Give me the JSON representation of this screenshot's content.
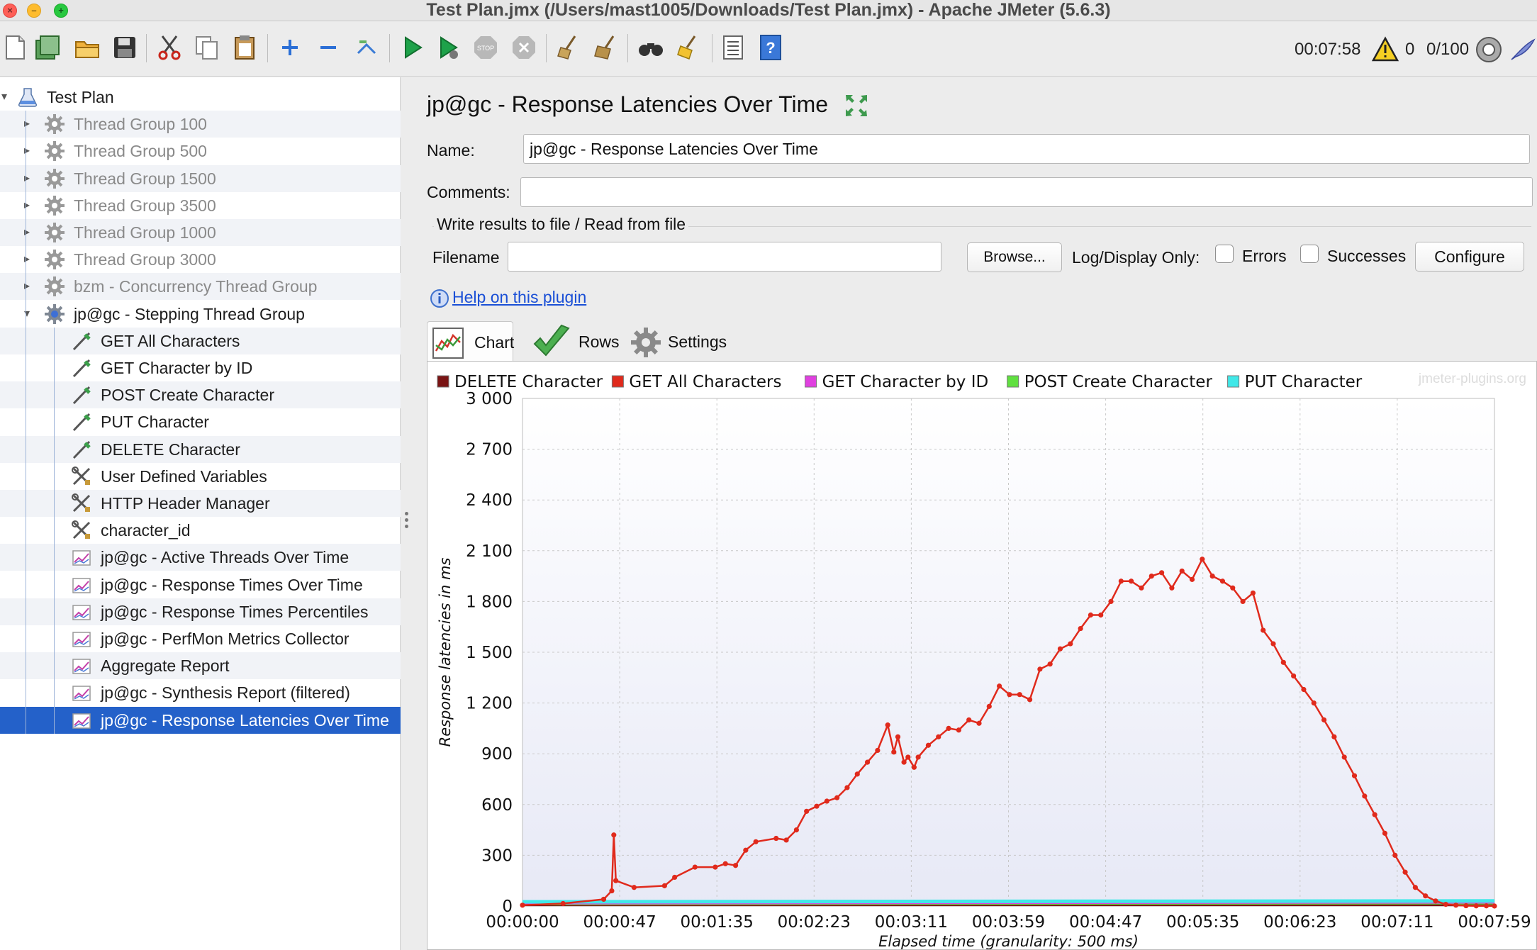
{
  "window": {
    "title": "Test Plan.jmx (/Users/mast1005/Downloads/Test Plan.jmx) - Apache JMeter (5.6.3)"
  },
  "toolbar": {
    "elapsed": "00:07:58",
    "warnings": "0",
    "threads": "0/100",
    "buttons": [
      "new-icon",
      "templates-icon",
      "open-icon",
      "save-icon",
      "cut-icon",
      "copy-icon",
      "paste-icon",
      "expand-icon",
      "collapse-icon",
      "toggle-icon",
      "start-icon",
      "start-no-pauses-icon",
      "stop-icon",
      "shutdown-icon",
      "clear-icon",
      "clear-all-icon",
      "search-icon",
      "reset-search-icon",
      "function-helper-icon",
      "help-icon"
    ]
  },
  "tree": {
    "root": "Test Plan",
    "items": [
      {
        "label": "Thread Group 100",
        "type": "thread",
        "disabled": true
      },
      {
        "label": "Thread Group 500",
        "type": "thread",
        "disabled": true
      },
      {
        "label": "Thread Group 1500",
        "type": "thread",
        "disabled": true
      },
      {
        "label": "Thread Group 3500",
        "type": "thread",
        "disabled": true
      },
      {
        "label": "Thread Group 1000",
        "type": "thread",
        "disabled": true
      },
      {
        "label": "Thread Group 3000",
        "type": "thread",
        "disabled": true
      },
      {
        "label": "bzm - Concurrency Thread Group",
        "type": "thread",
        "disabled": true
      },
      {
        "label": "jp@gc - Stepping Thread Group",
        "type": "thread",
        "disabled": false
      },
      {
        "label": "GET All Characters",
        "type": "sampler"
      },
      {
        "label": "GET Character by ID",
        "type": "sampler"
      },
      {
        "label": "POST Create Character",
        "type": "sampler"
      },
      {
        "label": "PUT Character",
        "type": "sampler"
      },
      {
        "label": "DELETE Character",
        "type": "sampler"
      },
      {
        "label": "User Defined Variables",
        "type": "config"
      },
      {
        "label": "HTTP Header Manager",
        "type": "config"
      },
      {
        "label": "character_id",
        "type": "config"
      },
      {
        "label": "jp@gc - Active Threads Over Time",
        "type": "listener"
      },
      {
        "label": "jp@gc - Response Times Over Time",
        "type": "listener"
      },
      {
        "label": "jp@gc - Response Times Percentiles",
        "type": "listener"
      },
      {
        "label": "jp@gc - PerfMon Metrics Collector",
        "type": "listener"
      },
      {
        "label": "Aggregate Report",
        "type": "listener"
      },
      {
        "label": "jp@gc - Synthesis Report (filtered)",
        "type": "listener"
      },
      {
        "label": "jp@gc - Response Latencies Over Time",
        "type": "listener",
        "selected": true
      }
    ]
  },
  "panel": {
    "title": "jp@gc - Response Latencies Over Time",
    "name_label": "Name:",
    "name_value": "jp@gc - Response Latencies Over Time",
    "comments_label": "Comments:",
    "comments_value": "",
    "file_section": "Write results to file / Read from file",
    "filename_label": "Filename",
    "filename_value": "",
    "browse": "Browse...",
    "log_display": "Log/Display Only:",
    "errors": "Errors",
    "successes": "Successes",
    "configure": "Configure",
    "help": "Help on this plugin",
    "tabs": [
      "Chart",
      "Rows",
      "Settings"
    ]
  },
  "chart_data": {
    "type": "line",
    "watermark": "jmeter-plugins.org",
    "ylabel": "Response latencies in ms",
    "xlabel": "Elapsed time (granularity: 500 ms)",
    "ylim": [
      0,
      3000
    ],
    "xlim_seconds": [
      0,
      479
    ],
    "yticks": [
      "0",
      "300",
      "600",
      "900",
      "1 200",
      "1 500",
      "1 800",
      "2 100",
      "2 400",
      "2 700",
      "3 000"
    ],
    "xticks": [
      "00:00:00",
      "00:00:47",
      "00:01:35",
      "00:02:23",
      "00:03:11",
      "00:03:59",
      "00:04:47",
      "00:05:35",
      "00:06:23",
      "00:07:11",
      "00:07:59"
    ],
    "grid": true,
    "legend": "top",
    "series": [
      {
        "name": "DELETE Character",
        "color": "#7a1414",
        "x": [
          0,
          479
        ],
        "y": [
          10,
          10
        ]
      },
      {
        "name": "GET All Characters",
        "color": "#e02a1c",
        "x": [
          0,
          20,
          40,
          44,
          45,
          46,
          55,
          70,
          75,
          85,
          95,
          100,
          105,
          110,
          115,
          125,
          130,
          135,
          140,
          145,
          150,
          155,
          160,
          165,
          170,
          175,
          180,
          183,
          185,
          188,
          190,
          193,
          195,
          200,
          205,
          210,
          215,
          220,
          225,
          230,
          235,
          240,
          245,
          250,
          255,
          260,
          265,
          270,
          275,
          280,
          285,
          290,
          295,
          300,
          305,
          310,
          315,
          320,
          325,
          330,
          335,
          340,
          345,
          350,
          355,
          360,
          365,
          370,
          375,
          380,
          385,
          390,
          395,
          400,
          405,
          410,
          415,
          420,
          425,
          430,
          435,
          440,
          445,
          450,
          455,
          460,
          465,
          470,
          475,
          479
        ],
        "y": [
          5,
          15,
          40,
          90,
          420,
          150,
          110,
          120,
          170,
          230,
          230,
          250,
          240,
          330,
          380,
          400,
          390,
          450,
          560,
          590,
          620,
          640,
          700,
          780,
          850,
          920,
          1070,
          910,
          1000,
          850,
          880,
          820,
          880,
          950,
          1000,
          1050,
          1040,
          1100,
          1080,
          1180,
          1300,
          1250,
          1250,
          1220,
          1400,
          1430,
          1520,
          1550,
          1640,
          1720,
          1720,
          1800,
          1920,
          1920,
          1880,
          1950,
          1970,
          1880,
          1980,
          1930,
          2050,
          1950,
          1920,
          1880,
          1800,
          1850,
          1630,
          1550,
          1440,
          1360,
          1280,
          1200,
          1100,
          1000,
          880,
          770,
          650,
          540,
          430,
          300,
          200,
          110,
          60,
          30,
          10,
          5,
          2,
          1,
          1,
          0
        ]
      },
      {
        "name": "GET Character by ID",
        "color": "#e040e0",
        "x": [
          0,
          479
        ],
        "y": [
          20,
          25
        ]
      },
      {
        "name": "POST Create Character",
        "color": "#60e040",
        "x": [
          0,
          479
        ],
        "y": [
          15,
          20
        ]
      },
      {
        "name": "PUT Character",
        "color": "#40e8e8",
        "x": [
          0,
          479
        ],
        "y": [
          25,
          30
        ]
      }
    ]
  }
}
